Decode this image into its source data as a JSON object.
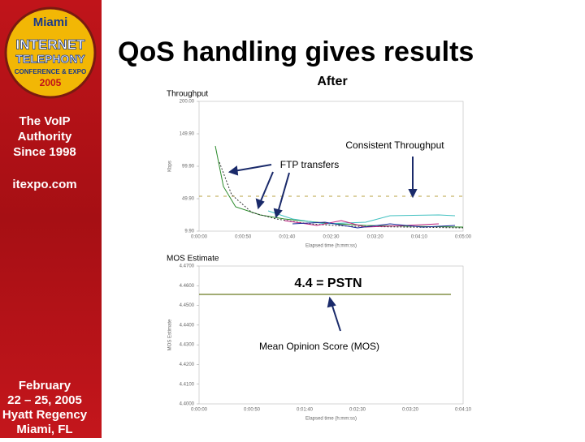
{
  "header": {
    "title": "QoS handling gives results",
    "subtitle": "After"
  },
  "sidebar": {
    "city": "Miami",
    "brand": [
      "INTERNET",
      "TELEPHONY"
    ],
    "event": "CONFERENCE & EXPO",
    "year": "2005",
    "tagline": [
      "The VoIP",
      "Authority",
      "Since 1998"
    ],
    "site": "itexpo.com",
    "dates": [
      "February",
      "22 – 25, 2005",
      "Hyatt Regency",
      "Miami, FL"
    ]
  },
  "charts": [
    {
      "title": "Throughput",
      "y_label": "Kbps",
      "x_label": "Elapsed time (h:mm:ss)",
      "y_tick_labels": [
        "200.00",
        "149.90",
        "99.90",
        "49.90",
        "9.90"
      ],
      "x_tick_labels": [
        "0:00:00",
        "0:00:50",
        "0:01:40",
        "0:02:30",
        "0:03:20",
        "0:04:10",
        "0:05:00"
      ]
    },
    {
      "title": "MOS Estimate",
      "y_label": "MOS Estimate",
      "x_label": "Elapsed time (h:mm:ss)",
      "y_tick_labels": [
        "4.4700",
        "4.4600",
        "4.4500",
        "4.4400",
        "4.4300",
        "4.4200",
        "4.4100",
        "4.4000"
      ],
      "x_tick_labels": [
        "0:00:00",
        "0:00:50",
        "0:01:40",
        "0:02:30",
        "0:03:20",
        "0:04:10"
      ]
    }
  ],
  "annotations": {
    "consistent": "Consistent Throughput",
    "ftp": "FTP transfers",
    "pstn": "4.4 = PSTN",
    "mos": "Mean Opinion Score (MOS)"
  }
}
